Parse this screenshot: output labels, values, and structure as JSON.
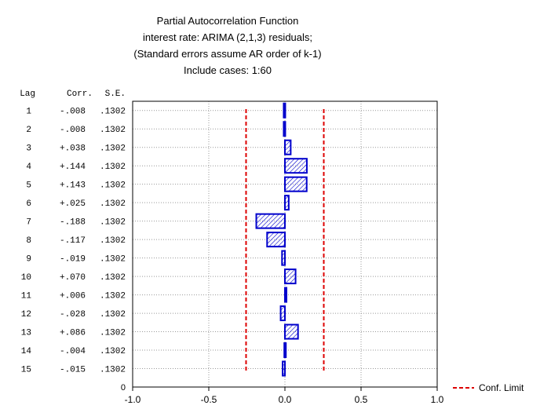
{
  "chart_data": {
    "type": "bar",
    "orientation": "horizontal",
    "title": "Partial Autocorrelation Function",
    "subtitle_lines": [
      "interest rate: ARIMA (2,1,3) residuals;",
      "(Standard errors assume AR order of k-1)",
      "Include cases: 1:60"
    ],
    "table_headers": {
      "lag": "Lag",
      "corr": "Corr.",
      "se": "S.E."
    },
    "lags": [
      "1",
      "2",
      "3",
      "4",
      "5",
      "6",
      "7",
      "8",
      "9",
      "10",
      "11",
      "12",
      "13",
      "14",
      "15"
    ],
    "corr_labels": [
      "-.008",
      "-.008",
      "+.038",
      "+.144",
      "+.143",
      "+.025",
      "-.188",
      "-.117",
      "-.019",
      "+.070",
      "+.006",
      "-.028",
      "+.086",
      "-.004",
      "-.015"
    ],
    "values": [
      -0.008,
      -0.008,
      0.038,
      0.144,
      0.143,
      0.025,
      -0.188,
      -0.117,
      -0.019,
      0.07,
      0.006,
      -0.028,
      0.086,
      -0.004,
      -0.015
    ],
    "se_labels": [
      ".1302",
      ".1302",
      ".1302",
      ".1302",
      ".1302",
      ".1302",
      ".1302",
      ".1302",
      ".1302",
      ".1302",
      ".1302",
      ".1302",
      ".1302",
      ".1302",
      ".1302"
    ],
    "conf_limit": 0.2552,
    "y_zero_label": "0",
    "xlim": [
      -1.0,
      1.0
    ],
    "x_ticks": [
      "-1.0",
      "-0.5",
      "0.0",
      "0.5",
      "1.0"
    ],
    "legend": {
      "label": "Conf. Limit",
      "placement": "bottom-right"
    },
    "grid": true,
    "colors": {
      "bar": "#0000cc",
      "conf_limit": "#dd0000",
      "grid": "#999999"
    }
  }
}
